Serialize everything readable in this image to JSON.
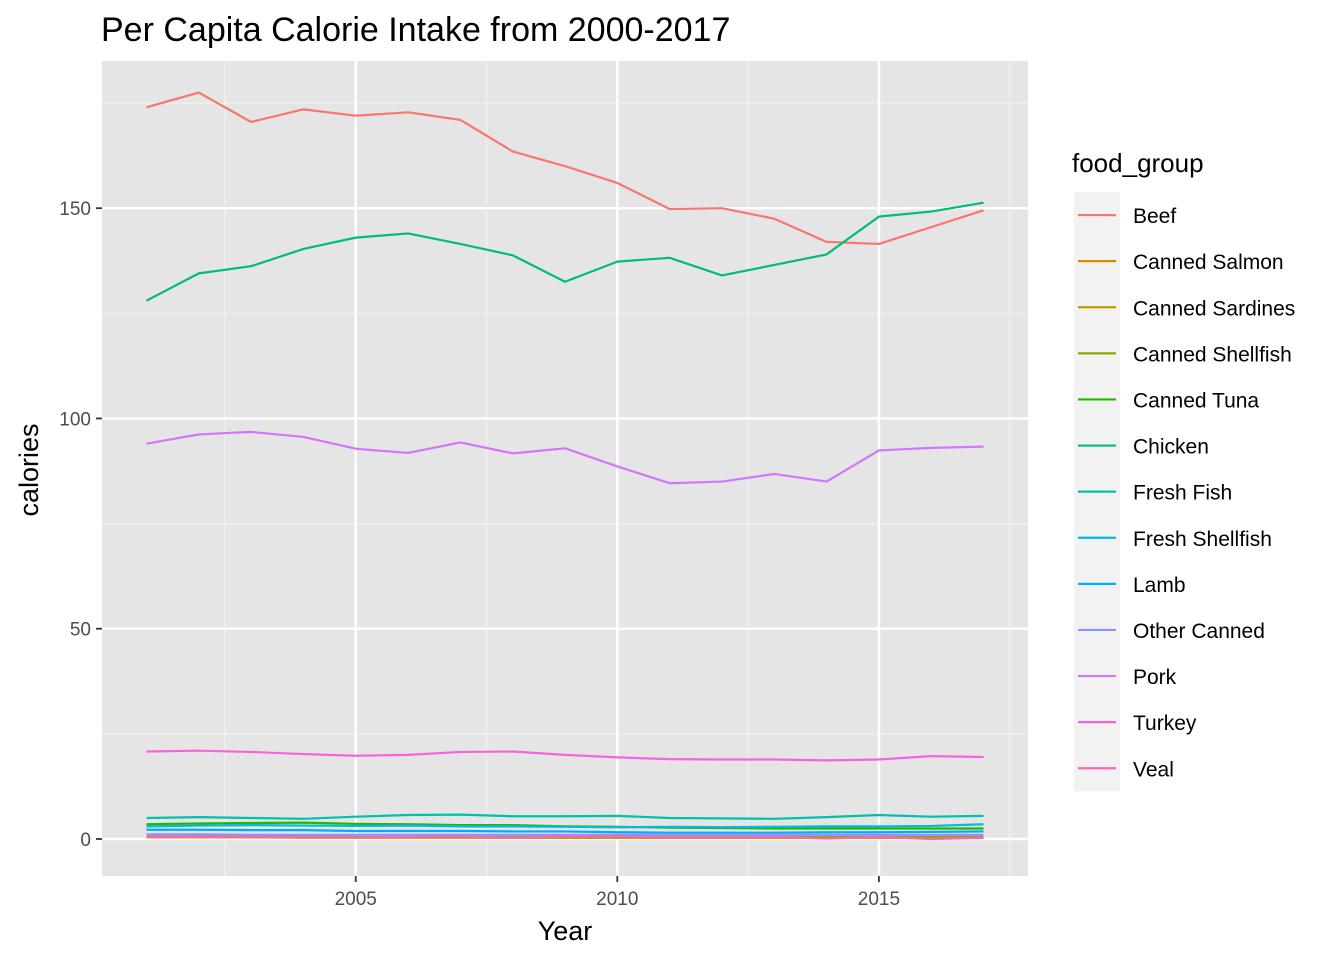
{
  "chart_data": {
    "type": "line",
    "title": "Per Capita Calorie Intake from 2000-2017",
    "xlabel": "Year",
    "ylabel": "calories",
    "xlim": [
      2000.15,
      2017.85
    ],
    "ylim": [
      -8.8,
      185
    ],
    "x_ticks": [
      2005,
      2010,
      2015
    ],
    "x_tick_labels": [
      "2005",
      "2010",
      "2015"
    ],
    "y_ticks": [
      0,
      50,
      100,
      150
    ],
    "y_tick_labels": [
      "0",
      "50",
      "100",
      "150"
    ],
    "grid": true,
    "panel_background": "#e5e5e5",
    "legend": {
      "title": "food_group",
      "position": "right"
    },
    "x": [
      2001,
      2002,
      2003,
      2004,
      2005,
      2006,
      2007,
      2008,
      2009,
      2010,
      2011,
      2012,
      2013,
      2014,
      2015,
      2016,
      2017
    ],
    "series": [
      {
        "name": "Beef",
        "color": "#F8766D",
        "values": [
          174.0,
          177.5,
          170.5,
          173.5,
          172.0,
          172.8,
          171.0,
          163.5,
          160.0,
          156.0,
          149.8,
          150.0,
          147.5,
          142.0,
          141.5,
          145.5,
          149.5
        ]
      },
      {
        "name": "Canned Salmon",
        "color": "#E18A00",
        "values": [
          0.5,
          0.4,
          0.4,
          0.4,
          0.4,
          0.4,
          0.4,
          0.3,
          0.3,
          0.3,
          0.3,
          0.3,
          0.3,
          0.3,
          0.3,
          0.3,
          0.3
        ]
      },
      {
        "name": "Canned Sardines",
        "color": "#BE9C00",
        "values": [
          0.4,
          0.4,
          0.4,
          0.3,
          0.3,
          0.3,
          0.3,
          0.3,
          0.3,
          0.3,
          0.3,
          0.3,
          0.3,
          0.3,
          0.3,
          0.3,
          0.3
        ]
      },
      {
        "name": "Canned Shellfish",
        "color": "#8CAB00",
        "values": [
          0.6,
          0.6,
          0.6,
          0.6,
          0.5,
          0.5,
          0.5,
          0.5,
          0.5,
          0.5,
          0.5,
          0.5,
          0.5,
          0.5,
          0.5,
          0.5,
          0.5
        ]
      },
      {
        "name": "Canned Tuna",
        "color": "#24B700",
        "values": [
          3.5,
          3.7,
          3.8,
          3.9,
          3.6,
          3.5,
          3.3,
          3.3,
          3.0,
          2.9,
          2.7,
          2.6,
          2.5,
          2.5,
          2.5,
          2.5,
          2.5
        ]
      },
      {
        "name": "Chicken",
        "color": "#00BE70",
        "values": [
          128.0,
          134.5,
          136.2,
          140.3,
          143.0,
          144.0,
          141.5,
          138.8,
          132.5,
          137.3,
          138.2,
          134.0,
          136.5,
          139.0,
          148.0,
          149.2,
          151.3
        ]
      },
      {
        "name": "Fresh Fish",
        "color": "#00C1AB",
        "values": [
          5.0,
          5.2,
          5.0,
          4.8,
          5.3,
          5.7,
          5.8,
          5.4,
          5.4,
          5.5,
          5.0,
          4.9,
          4.8,
          5.2,
          5.7,
          5.3,
          5.5
        ]
      },
      {
        "name": "Fresh Shellfish",
        "color": "#00BBDA",
        "values": [
          3.0,
          3.2,
          3.3,
          3.2,
          3.1,
          3.2,
          3.0,
          3.0,
          2.9,
          2.8,
          2.9,
          2.8,
          2.9,
          3.0,
          3.0,
          3.1,
          3.5
        ]
      },
      {
        "name": "Lamb",
        "color": "#00ACFC",
        "values": [
          2.2,
          2.2,
          2.1,
          2.1,
          1.9,
          1.9,
          1.9,
          1.8,
          1.8,
          1.6,
          1.5,
          1.5,
          1.5,
          1.6,
          1.6,
          1.7,
          1.8
        ]
      },
      {
        "name": "Other Canned",
        "color": "#8B93FF",
        "values": [
          1.1,
          1.1,
          1.0,
          1.0,
          1.0,
          1.0,
          1.0,
          1.0,
          1.0,
          1.0,
          1.0,
          1.0,
          1.0,
          1.0,
          1.0,
          1.0,
          1.0
        ]
      },
      {
        "name": "Pork",
        "color": "#D575FE",
        "values": [
          94.0,
          96.2,
          96.8,
          95.6,
          92.8,
          91.8,
          94.3,
          91.7,
          92.9,
          88.6,
          84.6,
          85.0,
          86.8,
          85.0,
          92.4,
          93.0,
          93.3
        ]
      },
      {
        "name": "Turkey",
        "color": "#F962DD",
        "values": [
          20.8,
          21.0,
          20.7,
          20.2,
          19.8,
          20.0,
          20.7,
          20.8,
          20.0,
          19.4,
          19.0,
          18.9,
          18.9,
          18.7,
          18.9,
          19.7,
          19.5
        ]
      },
      {
        "name": "Veal",
        "color": "#FF65AC",
        "values": [
          0.6,
          0.5,
          0.5,
          0.4,
          0.4,
          0.5,
          0.6,
          0.3,
          0.6,
          0.6,
          0.4,
          0.4,
          0.5,
          0.1,
          0.5,
          0.0,
          0.3
        ]
      }
    ]
  }
}
